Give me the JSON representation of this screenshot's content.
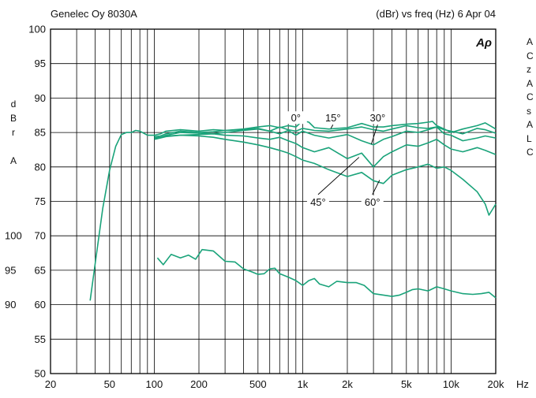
{
  "chart_data": {
    "type": "line",
    "header_left": "Genelec Oy 8030A",
    "header_right": "(dBr) vs freq (Hz) 6 Apr 04",
    "logo": "Aρ",
    "ylabel": [
      "d",
      "B",
      "r",
      "",
      "A"
    ],
    "xlabel": "Hz",
    "x_scale": "log",
    "xlim": [
      20,
      20000
    ],
    "ylim": [
      50,
      100
    ],
    "x_ticks": [
      {
        "value": 20,
        "label": "20"
      },
      {
        "value": 50,
        "label": "50"
      },
      {
        "value": 100,
        "label": "100"
      },
      {
        "value": 200,
        "label": "200"
      },
      {
        "value": 500,
        "label": "500"
      },
      {
        "value": 1000,
        "label": "1k"
      },
      {
        "value": 2000,
        "label": "2k"
      },
      {
        "value": 5000,
        "label": "5k"
      },
      {
        "value": 10000,
        "label": "10k"
      },
      {
        "value": 20000,
        "label": "20k"
      }
    ],
    "y_ticks": [
      {
        "value": 100,
        "label": "100"
      },
      {
        "value": 95,
        "label": "95"
      },
      {
        "value": 90,
        "label": "90"
      },
      {
        "value": 85,
        "label": "85"
      },
      {
        "value": 80,
        "label": "80"
      },
      {
        "value": 75,
        "label": "75"
      },
      {
        "value": 70,
        "label": "70"
      },
      {
        "value": 65,
        "label": "65"
      },
      {
        "value": 60,
        "label": "60"
      },
      {
        "value": 55,
        "label": "55"
      },
      {
        "value": 50,
        "label": "50"
      }
    ],
    "y_ticks_secondary": [
      {
        "value": 70,
        "label": "100"
      },
      {
        "value": 65,
        "label": "95"
      },
      {
        "value": 60,
        "label": "90"
      }
    ],
    "grid": true,
    "line_color": "#1aa37a",
    "series": [
      {
        "name": "0°",
        "x": [
          37,
          40,
          45,
          50,
          55,
          60,
          65,
          70,
          75,
          80,
          90,
          100,
          110,
          120,
          150,
          200,
          250,
          300,
          400,
          500,
          600,
          700,
          800,
          900,
          1000,
          1100,
          1200,
          1500,
          2000,
          2500,
          3000,
          3500,
          4000,
          5000,
          6000,
          7000,
          7500,
          8000,
          9000,
          10000,
          12000,
          15000,
          17000,
          20000
        ],
        "y": [
          60.6,
          66,
          74,
          79.5,
          83,
          84.7,
          85,
          85,
          85.3,
          85.2,
          84.6,
          84.6,
          84.8,
          85.2,
          85.4,
          85.2,
          85.4,
          85.3,
          85.5,
          85.8,
          86,
          85.7,
          86,
          85.8,
          86.7,
          86.5,
          85.7,
          85.5,
          85.7,
          86.3,
          85.8,
          85.8,
          86,
          86.2,
          86.3,
          86.5,
          86.6,
          86,
          85.5,
          85,
          85.5,
          86,
          86.4,
          85.5
        ]
      },
      {
        "name": "15°",
        "x": [
          100,
          110,
          120,
          150,
          200,
          250,
          300,
          400,
          500,
          600,
          700,
          800,
          900,
          1000,
          1200,
          1500,
          2000,
          2500,
          3000,
          3500,
          4000,
          5000,
          6000,
          7000,
          8000,
          9000,
          10000,
          12000,
          15000,
          17000,
          20000
        ],
        "y": [
          84.4,
          84.5,
          84.8,
          85.2,
          85,
          85.1,
          85.3,
          85.4,
          85.6,
          85.2,
          85.8,
          85.4,
          85.2,
          85.6,
          85.3,
          85.2,
          85.5,
          85.8,
          85.4,
          85.2,
          85.5,
          86,
          85.7,
          85.6,
          85.8,
          85.4,
          85.2,
          84.8,
          85.6,
          85.4,
          84.9
        ]
      },
      {
        "name": "30°",
        "x": [
          100,
          110,
          120,
          150,
          200,
          250,
          300,
          400,
          500,
          600,
          700,
          800,
          900,
          1000,
          1200,
          1500,
          2000,
          2500,
          3000,
          3500,
          4000,
          5000,
          6000,
          7000,
          8000,
          9000,
          10000,
          12000,
          15000,
          17000,
          20000
        ],
        "y": [
          84.2,
          84.3,
          84.6,
          85,
          84.9,
          84.8,
          85,
          85.3,
          85.5,
          85.2,
          84.8,
          85.3,
          84.6,
          85.2,
          84.6,
          84.2,
          84.7,
          83.8,
          83.2,
          84,
          84.4,
          85.2,
          85,
          85.4,
          85.8,
          84.8,
          84.6,
          83.8,
          84.2,
          84.5,
          84.2
        ]
      },
      {
        "name": "45°",
        "x": [
          100,
          110,
          120,
          150,
          200,
          250,
          300,
          400,
          500,
          600,
          700,
          800,
          900,
          1000,
          1200,
          1500,
          2000,
          2500,
          3000,
          3500,
          4000,
          5000,
          6000,
          7000,
          8000,
          9000,
          10000,
          12000,
          15000,
          17000,
          20000
        ],
        "y": [
          84.2,
          84.3,
          84.5,
          84.6,
          84.7,
          84.8,
          84.6,
          84.5,
          84.2,
          84,
          84.3,
          83.8,
          83.4,
          82.8,
          82.2,
          82.8,
          81.2,
          82,
          80,
          81.5,
          82.2,
          83.2,
          83,
          83.5,
          84,
          83.2,
          82.6,
          82.2,
          82.8,
          82.4,
          81.8
        ]
      },
      {
        "name": "60°",
        "x": [
          100,
          110,
          120,
          150,
          200,
          250,
          300,
          400,
          500,
          600,
          700,
          800,
          900,
          1000,
          1200,
          1500,
          2000,
          2500,
          3000,
          3500,
          4000,
          5000,
          6000,
          7000,
          8000,
          9000,
          10000,
          12000,
          15000,
          17000,
          18000,
          20000
        ],
        "y": [
          84,
          84.2,
          84.4,
          84.6,
          84.5,
          84.3,
          84,
          83.6,
          83.2,
          82.8,
          82.4,
          82,
          81.5,
          81,
          80.5,
          79.6,
          78.6,
          79.2,
          78,
          77.6,
          78.8,
          79.6,
          80,
          80.4,
          79.8,
          80,
          79.5,
          78.2,
          76.4,
          74.6,
          73,
          74.6
        ]
      },
      {
        "name": "",
        "x": [
          105,
          115,
          130,
          150,
          170,
          190,
          210,
          250,
          300,
          350,
          400,
          450,
          500,
          550,
          600,
          650,
          700,
          800,
          900,
          1000,
          1100,
          1200,
          1300,
          1500,
          1700,
          2000,
          2300,
          2600,
          3000,
          3500,
          4000,
          4500,
          5000,
          5500,
          6000,
          7000,
          8000,
          9000,
          10000,
          12000,
          14000,
          16000,
          18000,
          20000
        ],
        "y": [
          66.8,
          65.8,
          67.3,
          66.8,
          67.2,
          66.6,
          68,
          67.8,
          66.3,
          66.2,
          65.2,
          64.8,
          64.4,
          64.5,
          65.2,
          65.3,
          64.5,
          64,
          63.5,
          62.8,
          63.5,
          63.8,
          63,
          62.6,
          63.4,
          63.2,
          63.2,
          62.8,
          61.6,
          61.4,
          61.2,
          61.4,
          61.8,
          62.2,
          62.3,
          62,
          62.6,
          62.3,
          62,
          61.6,
          61.5,
          61.6,
          61.8,
          61
        ]
      }
    ],
    "annotations": [
      {
        "label": "0°",
        "x": 900,
        "y": 86.7,
        "tip_x": 900,
        "tip_y": 86.2
      },
      {
        "label": "15°",
        "x": 1600,
        "y": 86.7,
        "tip_x": 1550,
        "tip_y": 85.6
      },
      {
        "label": "30°",
        "x": 3200,
        "y": 86.7,
        "tip_x": 2900,
        "tip_y": 83.3
      },
      {
        "label": "45°",
        "x": 1270,
        "y": 74.5,
        "tip_x": 2400,
        "tip_y": 81.4
      },
      {
        "label": "60°",
        "x": 2950,
        "y": 74.5,
        "tip_x": 3300,
        "tip_y": 78.1
      }
    ]
  },
  "side_note": [
    "A",
    "C",
    "z",
    "A",
    "C",
    "s",
    "A",
    "L",
    "C"
  ]
}
